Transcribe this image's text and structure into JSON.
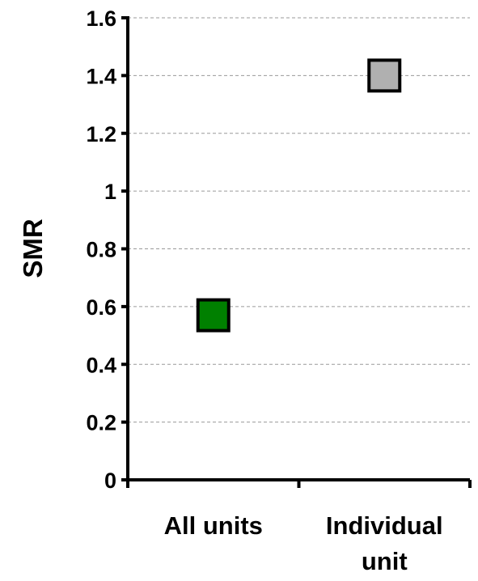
{
  "chart_data": {
    "type": "scatter",
    "title": "",
    "xlabel": "",
    "ylabel": "SMR",
    "categories": [
      [
        "All units"
      ],
      [
        "Individual",
        "unit"
      ]
    ],
    "points": [
      {
        "category_index": 0,
        "value": 0.57,
        "color": "#008000"
      },
      {
        "category_index": 1,
        "value": 1.4,
        "color": "#b0b0b0"
      }
    ],
    "ylim": [
      0,
      1.6
    ],
    "yticks": [
      0,
      0.2,
      0.4,
      0.6,
      0.8,
      1,
      1.2,
      1.4,
      1.6
    ],
    "grid": true
  }
}
